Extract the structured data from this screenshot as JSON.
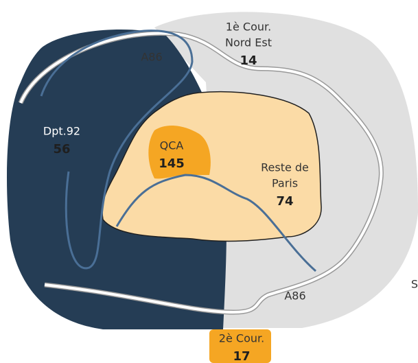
{
  "regions": [
    {
      "label_lines": [
        "1è Cour.",
        "Nord Est"
      ],
      "value": 14
    },
    {
      "label_lines": [
        "Dpt.92"
      ],
      "value": 56
    },
    {
      "label_lines": [
        "QCA"
      ],
      "value": 145
    },
    {
      "label_lines": [
        "Reste de",
        "Paris"
      ],
      "value": 74
    },
    {
      "label_lines": [
        "2è Cour."
      ],
      "value": 17
    }
  ],
  "roads": [
    "A86",
    "A86"
  ],
  "edge_text": "S"
}
